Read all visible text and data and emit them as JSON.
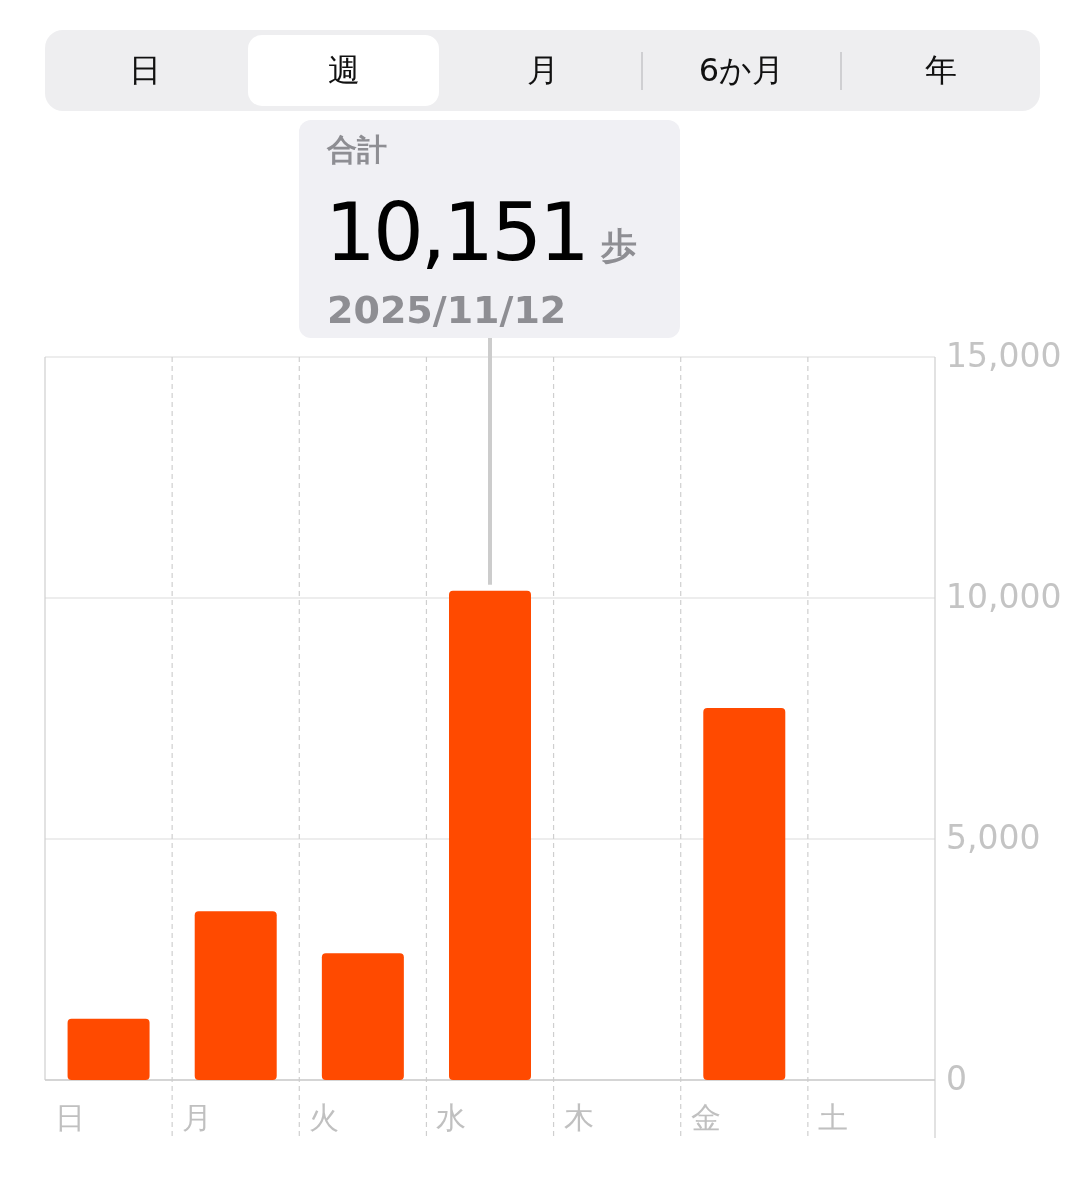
{
  "chart_data": {
    "type": "bar",
    "categories": [
      "日",
      "月",
      "火",
      "水",
      "木",
      "金",
      "土"
    ],
    "values": [
      1270,
      3500,
      2630,
      10151,
      null,
      7720,
      null
    ],
    "color": "#ff4a00",
    "ylim": [
      0,
      15000
    ],
    "yticks": [
      0,
      {
        "value": 5000,
        "label": "5,000"
      },
      {
        "value": 10000,
        "label": "10,000"
      },
      {
        "value": 15000,
        "label": "15,000"
      }
    ],
    "grid": true,
    "annotations": [
      "日",
      "週",
      "月",
      "6か月",
      "年",
      "合計",
      "10,151",
      "歩",
      "2025/11/12"
    ]
  }
}
